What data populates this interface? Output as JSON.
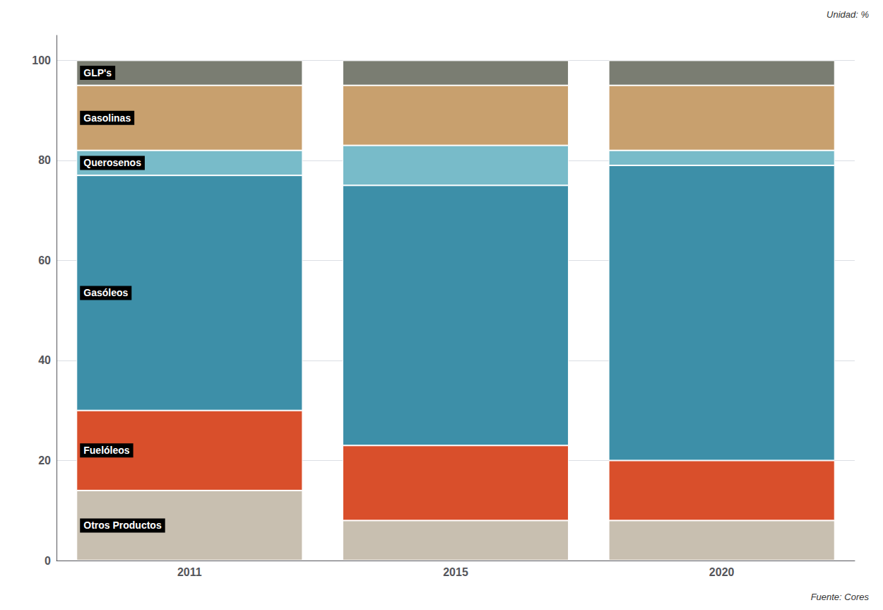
{
  "chart_data": {
    "type": "bar",
    "stacked": true,
    "categories": [
      "2011",
      "2015",
      "2020"
    ],
    "series": [
      {
        "name": "Otros Productos",
        "color": "#c8bfb0",
        "values": [
          14,
          8,
          8
        ]
      },
      {
        "name": "Fuelóleos",
        "color": "#d94f2b",
        "values": [
          16,
          15,
          12
        ]
      },
      {
        "name": "Gasóleos",
        "color": "#3d8fa8",
        "values": [
          47,
          52,
          59
        ]
      },
      {
        "name": "Querosenos",
        "color": "#78bbc9",
        "values": [
          5,
          8,
          3
        ]
      },
      {
        "name": "Gasolinas",
        "color": "#c8a06e",
        "values": [
          13,
          12,
          13
        ]
      },
      {
        "name": "GLP's",
        "color": "#7a7d72",
        "values": [
          5,
          5,
          5
        ]
      }
    ],
    "segment_labels": [
      "GLP's",
      "Gasolinas",
      "Querosenos",
      "Gasóleos",
      "Fuelóleos",
      "Otros Productos"
    ],
    "annotations": [
      "Unidad: %",
      "Fuente: Cores"
    ],
    "ylim": [
      0,
      105
    ],
    "yticks": [
      0,
      20,
      40,
      60,
      80,
      100
    ],
    "grid": true
  }
}
